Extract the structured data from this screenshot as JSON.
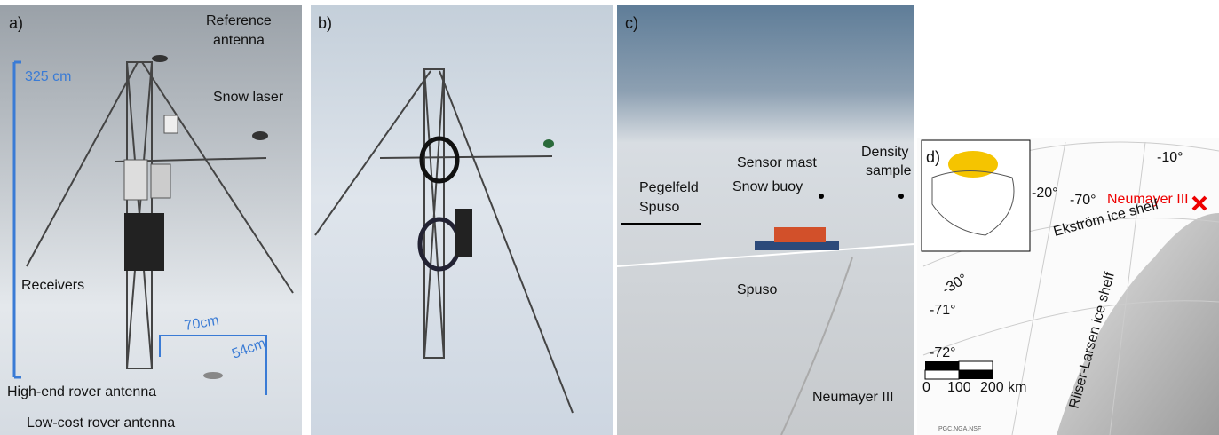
{
  "panel_a": {
    "label": "a)",
    "reference_antenna": [
      "Reference",
      "antenna"
    ],
    "height": "325 cm",
    "snow_laser": "Snow laser",
    "receivers": "Receivers",
    "dist_1": "70cm",
    "dist_2": "54cm",
    "high_end": "High-end rover antenna",
    "low_cost": "Low-cost rover antenna"
  },
  "panel_b": {
    "label": "b)"
  },
  "panel_c": {
    "label": "c)",
    "sensor_mast": "Sensor mast",
    "density_sample": [
      "Density",
      "sample"
    ],
    "pegelfeld": [
      "Pegelfeld",
      "Spuso"
    ],
    "snow_buoy": "Snow buoy",
    "spuso": "Spuso",
    "neumayer": "Neumayer III"
  },
  "panel_d": {
    "label": "d)",
    "lon_10": "-10°",
    "lon_20": "-20°",
    "lon_30": "-30°",
    "lat_70": "-70°",
    "lat_71": "-71°",
    "lat_72": "-72°",
    "neumayer": "Neumayer III",
    "ekstrom": "Ekström ice shelf",
    "riiser": "Riiser-Larsen ice shelf",
    "scale": [
      "0",
      "100",
      "200 km"
    ],
    "credit": "PGC,NGA,NSF"
  }
}
